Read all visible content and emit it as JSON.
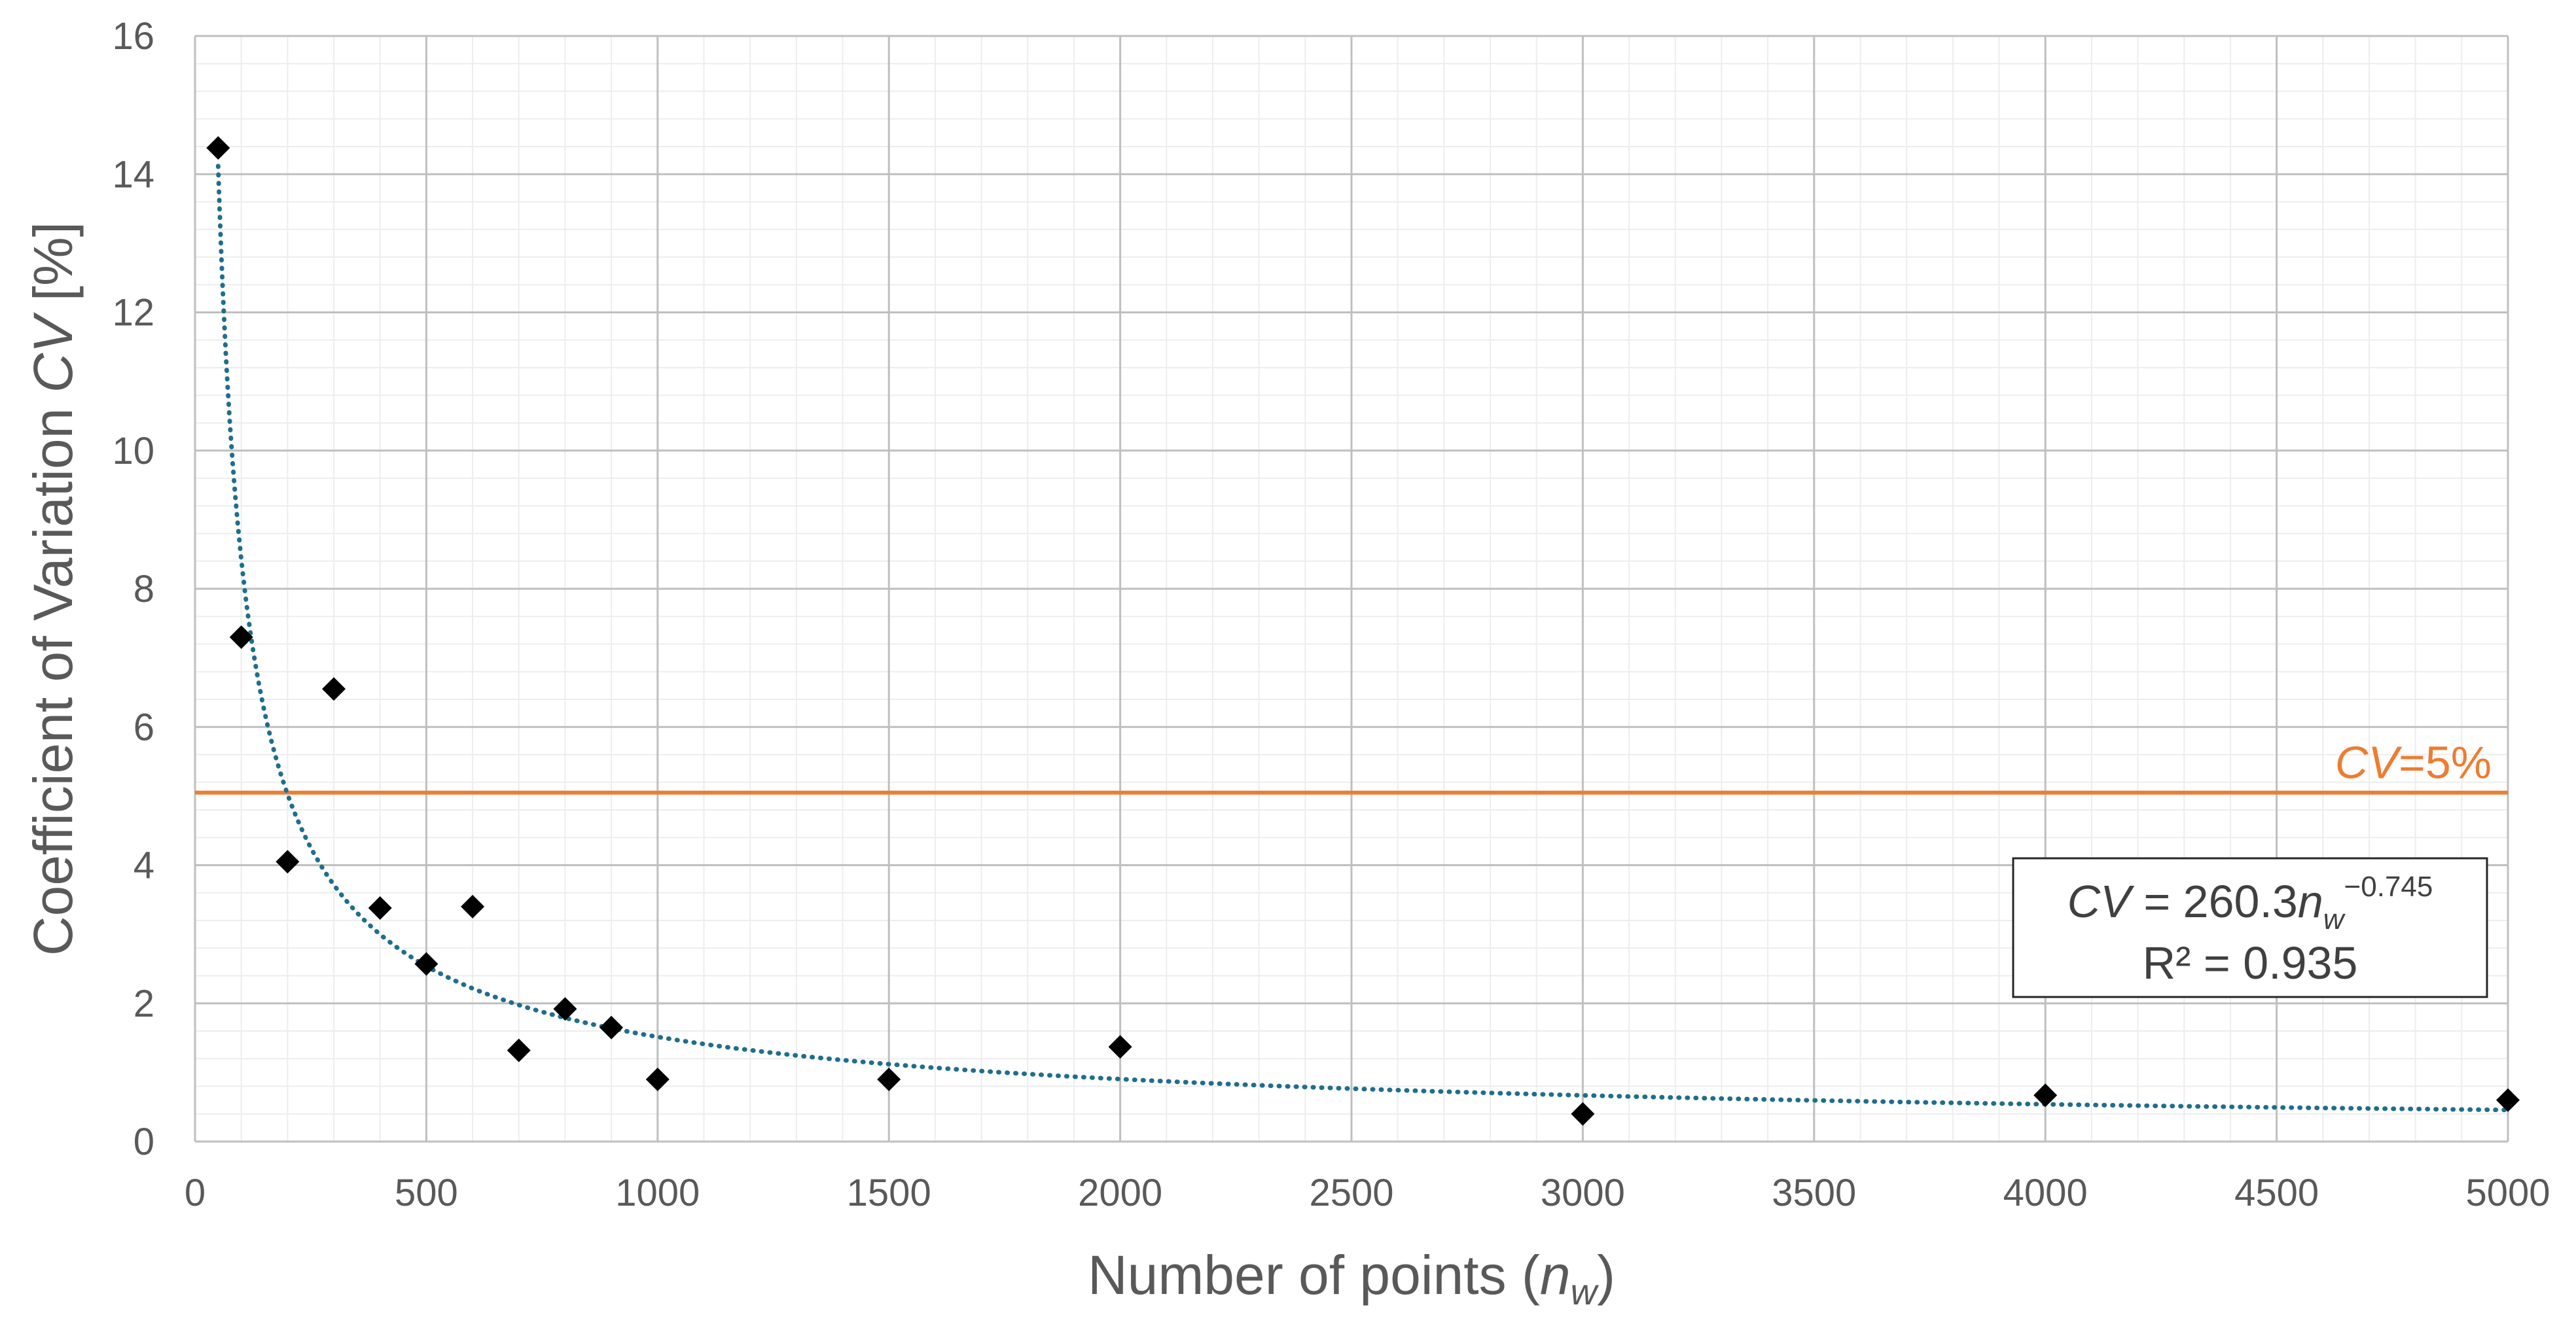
{
  "chart_data": {
    "type": "scatter",
    "xlabel": {
      "prefix": "Number of points (",
      "italic": "n",
      "sub": "w",
      "suffix": ")"
    },
    "ylabel": {
      "prefix": "Coefficient of Variation ",
      "italic": "CV",
      "suffix": " [%]"
    },
    "xlim": [
      0,
      5000
    ],
    "ylim": [
      0,
      16
    ],
    "x_ticks": [
      0,
      500,
      1000,
      1500,
      2000,
      2500,
      3000,
      3500,
      4000,
      4500,
      5000
    ],
    "y_ticks": [
      0,
      2,
      4,
      6,
      8,
      10,
      12,
      14,
      16
    ],
    "grid": true,
    "minor_grid": true,
    "points": {
      "x": [
        50,
        100,
        200,
        300,
        400,
        500,
        600,
        700,
        800,
        900,
        1000,
        1500,
        2000,
        3000,
        4000,
        5000
      ],
      "y": [
        14.38,
        7.3,
        4.05,
        6.55,
        3.38,
        2.57,
        3.4,
        1.32,
        1.92,
        1.65,
        0.9,
        0.9,
        1.37,
        0.4,
        0.67,
        0.6
      ]
    },
    "marker_color": "#000000",
    "trendline": {
      "type": "power",
      "coefficient": 260.3,
      "exponent": -0.745,
      "color": "#1F6E8C",
      "style": "dotted"
    },
    "reference_line": {
      "y": 5.05,
      "color": "#ED7D31",
      "label_italic": "CV",
      "label_rest": "=5%"
    },
    "equation_box": {
      "line1_italic_cv": "CV",
      "line1_mid": " = 260.3",
      "line1_italic_n": "n",
      "line1_sub": "w",
      "line1_sup": "−0.745",
      "line2": "R² = 0.935"
    }
  }
}
